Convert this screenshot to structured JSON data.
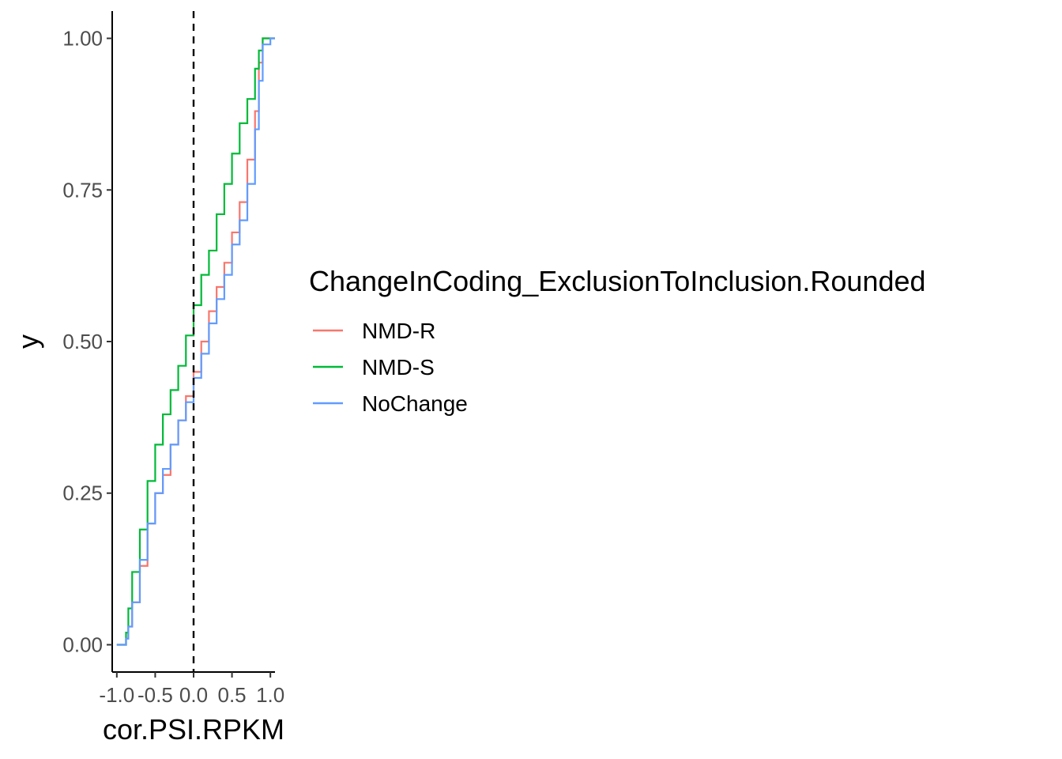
{
  "chart_data": {
    "type": "line",
    "subtype": "empirical cumulative distribution",
    "xlabel": "cor.PSI.RPKM",
    "ylabel": "y",
    "x_ticks": [
      "-1.0",
      "-0.5",
      "0.0",
      "0.5",
      "1.0"
    ],
    "y_ticks": [
      "0.00",
      "0.25",
      "0.50",
      "0.75",
      "1.00"
    ],
    "xlim": [
      -1.06,
      1.06
    ],
    "ylim": [
      -0.045,
      1.045
    ],
    "grid": false,
    "reference_line": {
      "x": 0.0,
      "style": "dashed",
      "color": "#000000"
    },
    "legend": {
      "title": "ChangeInCoding_ExclusionToInclusion.Rounded",
      "position": "right"
    },
    "series": [
      {
        "name": "NMD-R",
        "color": "#F8766D",
        "x": [
          -1.0,
          -0.92,
          -0.88,
          -0.85,
          -0.8,
          -0.7,
          -0.6,
          -0.5,
          -0.4,
          -0.3,
          -0.2,
          -0.1,
          0.0,
          0.1,
          0.2,
          0.3,
          0.4,
          0.5,
          0.6,
          0.7,
          0.8,
          0.85,
          0.9,
          1.0
        ],
        "y": [
          0.0,
          0.0,
          0.01,
          0.03,
          0.07,
          0.13,
          0.2,
          0.25,
          0.28,
          0.33,
          0.37,
          0.41,
          0.45,
          0.5,
          0.55,
          0.59,
          0.63,
          0.68,
          0.73,
          0.8,
          0.88,
          0.96,
          1.0,
          1.0
        ]
      },
      {
        "name": "NMD-S",
        "color": "#00BA38",
        "x": [
          -1.0,
          -0.92,
          -0.88,
          -0.85,
          -0.8,
          -0.7,
          -0.6,
          -0.5,
          -0.4,
          -0.3,
          -0.2,
          -0.1,
          0.0,
          0.1,
          0.2,
          0.3,
          0.4,
          0.5,
          0.6,
          0.7,
          0.8,
          0.85,
          0.9,
          1.0
        ],
        "y": [
          0.0,
          0.0,
          0.02,
          0.06,
          0.12,
          0.19,
          0.27,
          0.33,
          0.38,
          0.42,
          0.46,
          0.51,
          0.56,
          0.61,
          0.65,
          0.71,
          0.76,
          0.81,
          0.86,
          0.9,
          0.95,
          0.98,
          1.0,
          1.0
        ]
      },
      {
        "name": "NoChange",
        "color": "#619CFF",
        "x": [
          -1.0,
          -0.92,
          -0.88,
          -0.85,
          -0.8,
          -0.7,
          -0.6,
          -0.5,
          -0.4,
          -0.3,
          -0.2,
          -0.1,
          0.0,
          0.1,
          0.2,
          0.3,
          0.4,
          0.5,
          0.6,
          0.7,
          0.8,
          0.85,
          0.9,
          1.0
        ],
        "y": [
          0.0,
          0.0,
          0.01,
          0.03,
          0.07,
          0.14,
          0.2,
          0.25,
          0.29,
          0.33,
          0.37,
          0.4,
          0.44,
          0.48,
          0.53,
          0.57,
          0.61,
          0.66,
          0.7,
          0.76,
          0.85,
          0.93,
          0.99,
          1.0
        ]
      }
    ]
  }
}
